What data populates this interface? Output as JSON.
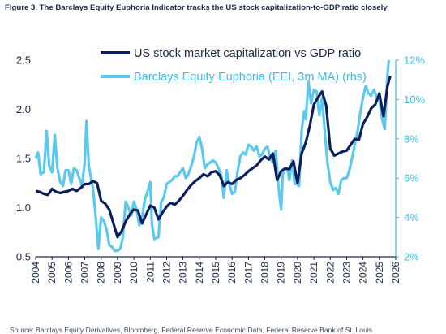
{
  "caption": "Figure 3. The Barclays Equity Euphoria Indicator tracks the US stock capitalization-to-GDP ratio closely",
  "source": "Source: Barclays Equity Derivatives, Bloomberg, Federal Reserve Economic Data, Federal Reserve Bank of St. Louis",
  "colors": {
    "series_primary": "#0c1e5b",
    "series_secondary": "#5bc8f0",
    "right_axis": "#37bff0",
    "axis": "#1b2a48"
  },
  "chart_data": {
    "type": "line",
    "title": "",
    "grid": false,
    "legend_position": "top-right",
    "x_axis": {
      "range": [
        2004,
        2026
      ],
      "ticks": [
        "2004",
        "2005",
        "2006",
        "2007",
        "2008",
        "2009",
        "2010",
        "2011",
        "2012",
        "2013",
        "2014",
        "2015",
        "2016",
        "2017",
        "2018",
        "2019",
        "2020",
        "2021",
        "2022",
        "2023",
        "2024",
        "2025",
        "2026"
      ]
    },
    "y_left": {
      "range": [
        0.5,
        2.5
      ],
      "ticks": [
        "0.5",
        "1.0",
        "1.5",
        "2.0",
        "2.5"
      ]
    },
    "y_right": {
      "range": [
        2,
        12
      ],
      "ticks": [
        "2%",
        "4%",
        "6%",
        "8%",
        "10%",
        "12%"
      ]
    },
    "series": [
      {
        "name": "US stock market capitalization vs GDP ratio",
        "axis": "left",
        "points": [
          [
            2004.0,
            1.17
          ],
          [
            2004.25,
            1.16
          ],
          [
            2004.5,
            1.14
          ],
          [
            2004.75,
            1.13
          ],
          [
            2005.0,
            1.19
          ],
          [
            2005.25,
            1.16
          ],
          [
            2005.5,
            1.15
          ],
          [
            2005.75,
            1.16
          ],
          [
            2006.0,
            1.17
          ],
          [
            2006.25,
            1.19
          ],
          [
            2006.5,
            1.17
          ],
          [
            2006.75,
            1.2
          ],
          [
            2007.0,
            1.24
          ],
          [
            2007.25,
            1.24
          ],
          [
            2007.5,
            1.27
          ],
          [
            2007.75,
            1.25
          ],
          [
            2008.0,
            1.07
          ],
          [
            2008.25,
            1.04
          ],
          [
            2008.5,
            0.98
          ],
          [
            2008.75,
            0.84
          ],
          [
            2009.0,
            0.7
          ],
          [
            2009.25,
            0.76
          ],
          [
            2009.5,
            0.86
          ],
          [
            2009.75,
            0.93
          ],
          [
            2010.0,
            0.98
          ],
          [
            2010.25,
            0.97
          ],
          [
            2010.5,
            0.84
          ],
          [
            2010.75,
            0.93
          ],
          [
            2011.0,
            1.02
          ],
          [
            2011.25,
            1.0
          ],
          [
            2011.5,
            0.88
          ],
          [
            2011.75,
            0.95
          ],
          [
            2012.0,
            1.01
          ],
          [
            2012.25,
            1.05
          ],
          [
            2012.5,
            1.03
          ],
          [
            2012.75,
            1.07
          ],
          [
            2013.0,
            1.12
          ],
          [
            2013.25,
            1.18
          ],
          [
            2013.5,
            1.23
          ],
          [
            2013.75,
            1.27
          ],
          [
            2014.0,
            1.3
          ],
          [
            2014.25,
            1.34
          ],
          [
            2014.5,
            1.32
          ],
          [
            2014.75,
            1.36
          ],
          [
            2015.0,
            1.37
          ],
          [
            2015.25,
            1.33
          ],
          [
            2015.5,
            1.22
          ],
          [
            2015.75,
            1.26
          ],
          [
            2016.0,
            1.24
          ],
          [
            2016.25,
            1.28
          ],
          [
            2016.5,
            1.3
          ],
          [
            2016.75,
            1.33
          ],
          [
            2017.0,
            1.37
          ],
          [
            2017.25,
            1.4
          ],
          [
            2017.5,
            1.43
          ],
          [
            2017.75,
            1.48
          ],
          [
            2018.0,
            1.52
          ],
          [
            2018.25,
            1.49
          ],
          [
            2018.5,
            1.55
          ],
          [
            2018.75,
            1.28
          ],
          [
            2019.0,
            1.37
          ],
          [
            2019.25,
            1.4
          ],
          [
            2019.5,
            1.39
          ],
          [
            2019.75,
            1.47
          ],
          [
            2020.0,
            1.25
          ],
          [
            2020.25,
            1.55
          ],
          [
            2020.5,
            1.66
          ],
          [
            2020.75,
            1.83
          ],
          [
            2021.0,
            2.05
          ],
          [
            2021.25,
            2.12
          ],
          [
            2021.5,
            2.18
          ],
          [
            2021.75,
            2.04
          ],
          [
            2022.0,
            1.6
          ],
          [
            2022.25,
            1.53
          ],
          [
            2022.5,
            1.55
          ],
          [
            2022.75,
            1.57
          ],
          [
            2023.0,
            1.58
          ],
          [
            2023.25,
            1.64
          ],
          [
            2023.5,
            1.7
          ],
          [
            2023.75,
            1.69
          ],
          [
            2024.0,
            1.85
          ],
          [
            2024.25,
            1.92
          ],
          [
            2024.5,
            2.01
          ],
          [
            2024.75,
            2.05
          ],
          [
            2025.0,
            2.16
          ],
          [
            2025.25,
            1.93
          ],
          [
            2025.5,
            2.24
          ],
          [
            2025.67,
            2.34
          ]
        ]
      },
      {
        "name": "Barclays Equity Euphoria (EEI, 3m MA) (rhs)",
        "axis": "right",
        "points": [
          [
            2004.0,
            7.0
          ],
          [
            2004.15,
            7.3
          ],
          [
            2004.3,
            6.2
          ],
          [
            2004.5,
            6.3
          ],
          [
            2004.67,
            8.4
          ],
          [
            2004.83,
            6.6
          ],
          [
            2005.0,
            6.3
          ],
          [
            2005.17,
            8.2
          ],
          [
            2005.33,
            6.5
          ],
          [
            2005.5,
            5.8
          ],
          [
            2005.67,
            5.6
          ],
          [
            2005.83,
            6.4
          ],
          [
            2006.0,
            6.4
          ],
          [
            2006.17,
            5.7
          ],
          [
            2006.33,
            6.5
          ],
          [
            2006.5,
            6.4
          ],
          [
            2006.67,
            6.0
          ],
          [
            2006.83,
            5.6
          ],
          [
            2007.0,
            6.8
          ],
          [
            2007.1,
            8.9
          ],
          [
            2007.25,
            6.6
          ],
          [
            2007.5,
            5.5
          ],
          [
            2007.67,
            4.0
          ],
          [
            2007.83,
            2.4
          ],
          [
            2008.0,
            4.0
          ],
          [
            2008.17,
            3.8
          ],
          [
            2008.33,
            3.4
          ],
          [
            2008.5,
            2.6
          ],
          [
            2008.67,
            2.5
          ],
          [
            2008.83,
            2.3
          ],
          [
            2009.0,
            2.3
          ],
          [
            2009.17,
            2.4
          ],
          [
            2009.33,
            3.0
          ],
          [
            2009.5,
            4.8
          ],
          [
            2009.67,
            4.5
          ],
          [
            2009.83,
            4.1
          ],
          [
            2010.0,
            4.8
          ],
          [
            2010.17,
            4.4
          ],
          [
            2010.33,
            3.6
          ],
          [
            2010.5,
            4.0
          ],
          [
            2010.67,
            4.9
          ],
          [
            2010.83,
            5.3
          ],
          [
            2011.0,
            5.8
          ],
          [
            2011.1,
            3.7
          ],
          [
            2011.25,
            2.9
          ],
          [
            2011.5,
            3.0
          ],
          [
            2011.67,
            4.8
          ],
          [
            2011.83,
            5.0
          ],
          [
            2012.0,
            5.7
          ],
          [
            2012.17,
            5.8
          ],
          [
            2012.33,
            5.9
          ],
          [
            2012.5,
            6.1
          ],
          [
            2012.67,
            6.1
          ],
          [
            2012.83,
            6.3
          ],
          [
            2013.0,
            6.5
          ],
          [
            2013.17,
            6.0
          ],
          [
            2013.33,
            6.2
          ],
          [
            2013.5,
            6.6
          ],
          [
            2013.67,
            7.1
          ],
          [
            2013.83,
            7.8
          ],
          [
            2014.0,
            8.1
          ],
          [
            2014.17,
            7.5
          ],
          [
            2014.33,
            6.5
          ],
          [
            2014.5,
            6.7
          ],
          [
            2014.67,
            6.8
          ],
          [
            2014.83,
            6.9
          ],
          [
            2015.0,
            6.8
          ],
          [
            2015.17,
            6.5
          ],
          [
            2015.33,
            6.2
          ],
          [
            2015.5,
            5.0
          ],
          [
            2015.67,
            6.4
          ],
          [
            2015.83,
            5.7
          ],
          [
            2016.0,
            5.2
          ],
          [
            2016.17,
            5.3
          ],
          [
            2016.33,
            6.3
          ],
          [
            2016.5,
            7.1
          ],
          [
            2016.67,
            7.3
          ],
          [
            2016.83,
            7.2
          ],
          [
            2017.0,
            7.7
          ],
          [
            2017.17,
            7.6
          ],
          [
            2017.33,
            7.4
          ],
          [
            2017.5,
            7.6
          ],
          [
            2017.67,
            7.1
          ],
          [
            2017.83,
            7.2
          ],
          [
            2018.0,
            7.5
          ],
          [
            2018.17,
            7.6
          ],
          [
            2018.33,
            7.0
          ],
          [
            2018.5,
            6.8
          ],
          [
            2018.67,
            7.4
          ],
          [
            2018.83,
            5.6
          ],
          [
            2019.0,
            4.4
          ],
          [
            2019.1,
            6.2
          ],
          [
            2019.25,
            6.5
          ],
          [
            2019.4,
            6.4
          ],
          [
            2019.5,
            5.9
          ],
          [
            2019.67,
            6.9
          ],
          [
            2019.83,
            5.7
          ],
          [
            2020.0,
            5.7
          ],
          [
            2020.1,
            5.6
          ],
          [
            2020.25,
            8.4
          ],
          [
            2020.4,
            9.4
          ],
          [
            2020.5,
            9.0
          ],
          [
            2020.67,
            10.9
          ],
          [
            2020.83,
            9.8
          ],
          [
            2021.0,
            10.5
          ],
          [
            2021.17,
            10.4
          ],
          [
            2021.33,
            9.2
          ],
          [
            2021.5,
            10.1
          ],
          [
            2021.67,
            8.3
          ],
          [
            2021.83,
            6.8
          ],
          [
            2022.0,
            5.8
          ],
          [
            2022.17,
            5.4
          ],
          [
            2022.33,
            5.5
          ],
          [
            2022.5,
            5.2
          ],
          [
            2022.67,
            5.9
          ],
          [
            2022.83,
            6.0
          ],
          [
            2023.0,
            6.0
          ],
          [
            2023.17,
            6.4
          ],
          [
            2023.33,
            7.0
          ],
          [
            2023.5,
            7.7
          ],
          [
            2023.67,
            8.4
          ],
          [
            2023.83,
            9.3
          ],
          [
            2024.0,
            10.1
          ],
          [
            2024.17,
            10.7
          ],
          [
            2024.33,
            10.3
          ],
          [
            2024.5,
            10.2
          ],
          [
            2024.67,
            10.5
          ],
          [
            2024.83,
            10.1
          ],
          [
            2025.0,
            10.0
          ],
          [
            2025.17,
            9.0
          ],
          [
            2025.33,
            8.5
          ],
          [
            2025.5,
            11.3
          ],
          [
            2025.58,
            12.0
          ]
        ]
      }
    ]
  }
}
